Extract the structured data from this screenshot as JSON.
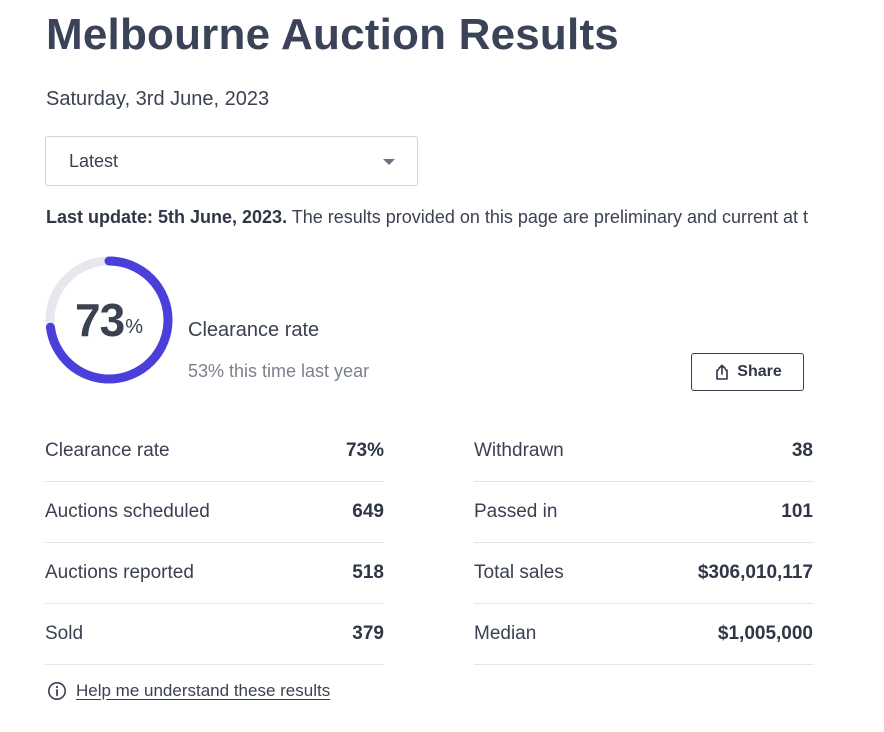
{
  "header": {
    "title": "Melbourne Auction Results",
    "date": "Saturday, 3rd June, 2023"
  },
  "filter": {
    "selected": "Latest"
  },
  "notice": {
    "bold": "Last update: 5th June, 2023.",
    "text": " The results provided on this page are preliminary and current at t"
  },
  "clearance": {
    "value": "73",
    "unit": "%",
    "fraction": 0.73,
    "label": "Clearance rate",
    "comparison": "53% this time last year",
    "ring_color": "#4a3fdb",
    "track_color": "#e7e8ee"
  },
  "share": {
    "label": "Share",
    "icon": "share-icon"
  },
  "stats_left": [
    {
      "label": "Clearance rate",
      "value": "73%"
    },
    {
      "label": "Auctions scheduled",
      "value": "649"
    },
    {
      "label": "Auctions reported",
      "value": "518"
    },
    {
      "label": "Sold",
      "value": "379"
    }
  ],
  "stats_right": [
    {
      "label": "Withdrawn",
      "value": "38"
    },
    {
      "label": "Passed in",
      "value": "101"
    },
    {
      "label": "Total sales",
      "value": "$306,010,117"
    },
    {
      "label": "Median",
      "value": "$1,005,000"
    }
  ],
  "help": {
    "icon": "info-icon",
    "link": "Help me understand these results"
  }
}
